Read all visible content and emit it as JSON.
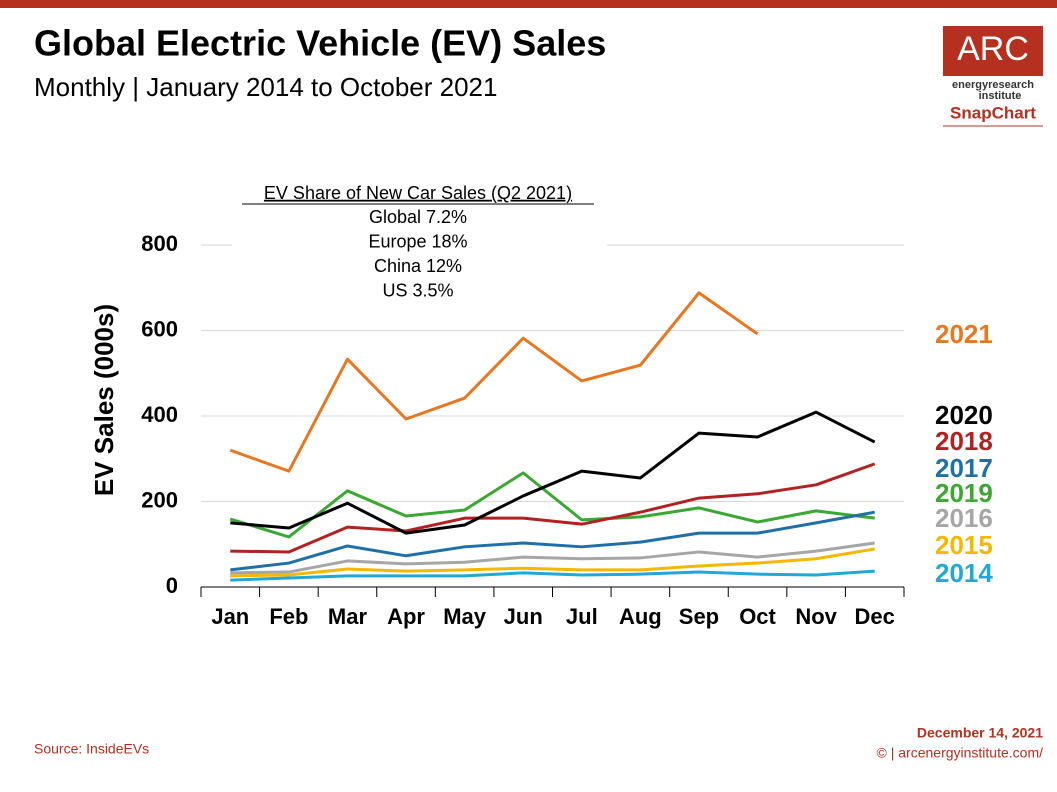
{
  "chart_data": {
    "type": "line",
    "title": "Global Electric Vehicle (EV) Sales",
    "subtitle": "Monthly | January 2014 to October 2021",
    "y_label": "EV Sales (000s)",
    "annotation": {
      "title": "EV Share of New Car Sales (Q2 2021)",
      "lines": [
        "Global 7.2%",
        "Europe 18%",
        "China 12%",
        "US 3.5%"
      ]
    },
    "categories": [
      "Jan",
      "Feb",
      "Mar",
      "Apr",
      "May",
      "Jun",
      "Jul",
      "Aug",
      "Sep",
      "Oct",
      "Nov",
      "Dec"
    ],
    "ylim": [
      0,
      800
    ],
    "yticks": [
      0,
      200,
      400,
      600,
      800
    ],
    "grid": true,
    "series": [
      {
        "name": "2021",
        "color": "#e87722",
        "values": [
          320,
          271,
          533,
          393,
          442,
          582,
          482,
          519,
          688,
          592,
          null,
          null
        ]
      },
      {
        "name": "2020",
        "color": "#000000",
        "values": [
          150,
          138,
          196,
          126,
          145,
          213,
          271,
          255,
          360,
          351,
          409,
          339
        ]
      },
      {
        "name": "2018",
        "color": "#b22222",
        "values": [
          84,
          82,
          140,
          131,
          161,
          161,
          147,
          175,
          208,
          218,
          239,
          288
        ]
      },
      {
        "name": "2017",
        "color": "#1f6fa8",
        "values": [
          40,
          56,
          96,
          73,
          94,
          103,
          94,
          105,
          126,
          126,
          150,
          175
        ]
      },
      {
        "name": "2019",
        "color": "#3aa832",
        "values": [
          159,
          117,
          225,
          166,
          180,
          267,
          157,
          164,
          185,
          152,
          178,
          161
        ]
      },
      {
        "name": "2016",
        "color": "#a6a6a6",
        "values": [
          33,
          35,
          61,
          54,
          58,
          70,
          66,
          68,
          82,
          70,
          84,
          103
        ]
      },
      {
        "name": "2015",
        "color": "#f5b800",
        "values": [
          26,
          28,
          42,
          37,
          40,
          44,
          40,
          40,
          49,
          56,
          66,
          89
        ]
      },
      {
        "name": "2014",
        "color": "#1fa8d8",
        "values": [
          16,
          21,
          26,
          26,
          26,
          33,
          28,
          30,
          35,
          30,
          28,
          37
        ]
      }
    ]
  },
  "branding": {
    "logo": "ARC",
    "logo_line1": "energyresearch",
    "logo_line2": "institute",
    "product": "SnapChart"
  },
  "footer": {
    "source": "Source: InsideEVs",
    "date": "December 14, 2021",
    "copyright": "© | arcenergyinstitute.com/"
  }
}
